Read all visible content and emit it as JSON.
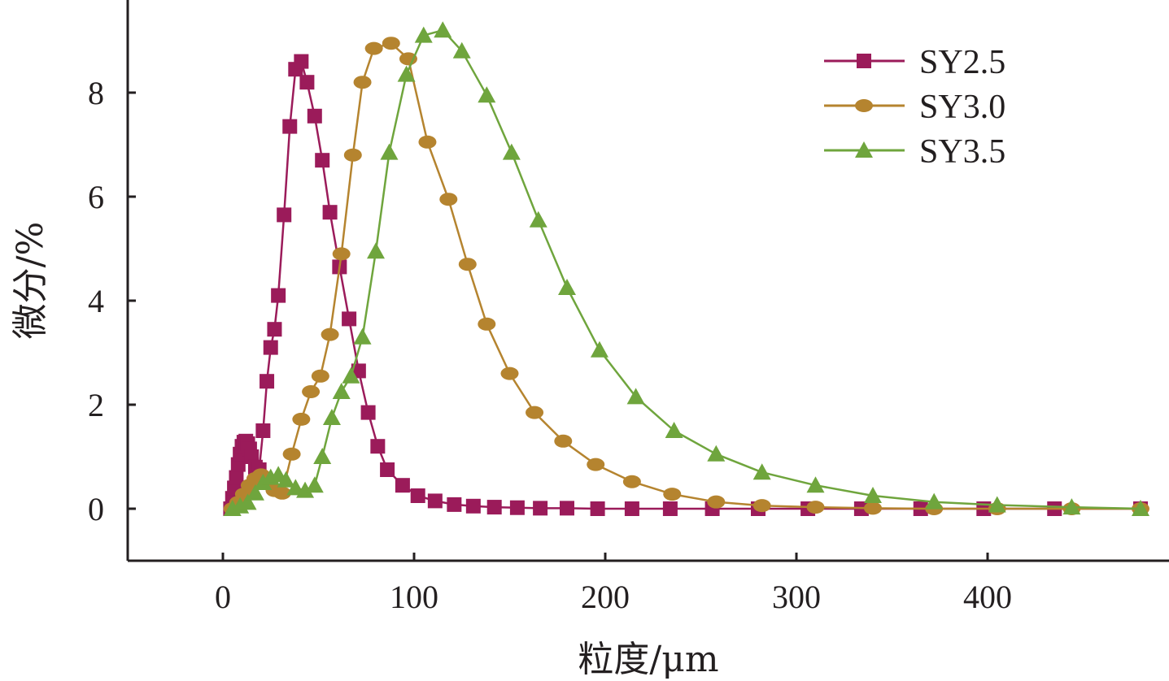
{
  "chart_data": {
    "type": "line",
    "title": "",
    "xlabel": "粒度/μm",
    "ylabel": "微分/%",
    "xlim": [
      -50,
      490
    ],
    "ylim": [
      -1,
      10
    ],
    "x_ticks": [
      0,
      100,
      200,
      300,
      400
    ],
    "y_ticks": [
      0,
      2,
      4,
      6,
      8
    ],
    "grid": false,
    "legend_position": "top-right",
    "series": [
      {
        "name": "SY2.5",
        "color": "#9b1b5a",
        "marker": "square",
        "x": [
          4,
          5,
          6,
          7,
          8,
          9,
          10,
          11,
          12,
          13,
          14,
          15,
          17,
          19,
          21,
          23,
          25,
          27,
          29,
          32,
          35,
          38,
          41,
          44,
          48,
          52,
          56,
          61,
          66,
          71,
          76,
          81,
          86,
          94,
          102,
          111,
          121,
          131,
          142,
          154,
          166,
          180,
          196,
          214,
          234,
          256,
          280,
          306,
          334,
          365,
          398,
          435,
          480
        ],
        "y": [
          0.0,
          0.2,
          0.4,
          0.6,
          0.85,
          1.05,
          1.2,
          1.28,
          1.3,
          1.25,
          1.15,
          1.0,
          0.8,
          0.75,
          1.5,
          2.45,
          3.1,
          3.45,
          4.1,
          5.65,
          7.35,
          8.45,
          8.6,
          8.2,
          7.55,
          6.7,
          5.7,
          4.65,
          3.65,
          2.65,
          1.85,
          1.2,
          0.75,
          0.45,
          0.25,
          0.15,
          0.08,
          0.05,
          0.03,
          0.02,
          0.01,
          0.01,
          0.0,
          0.0,
          0.0,
          0.0,
          0.0,
          0.0,
          0.0,
          0.0,
          0.0,
          0.0,
          0.0
        ]
      },
      {
        "name": "SY3.0",
        "color": "#b5842f",
        "marker": "circle",
        "x": [
          5,
          8,
          11,
          14,
          17,
          20,
          23,
          27,
          31,
          36,
          41,
          46,
          51,
          56,
          62,
          68,
          73,
          79,
          88,
          97,
          107,
          118,
          128,
          138,
          150,
          163,
          178,
          195,
          214,
          235,
          258,
          282,
          310,
          340,
          372,
          405,
          444,
          480
        ],
        "y": [
          0.0,
          0.12,
          0.28,
          0.45,
          0.58,
          0.65,
          0.55,
          0.35,
          0.3,
          1.05,
          1.72,
          2.25,
          2.55,
          3.35,
          4.9,
          6.8,
          8.2,
          8.85,
          8.95,
          8.65,
          7.05,
          5.95,
          4.7,
          3.55,
          2.6,
          1.85,
          1.3,
          0.85,
          0.52,
          0.28,
          0.13,
          0.06,
          0.03,
          0.01,
          0.0,
          0.0,
          0.0,
          0.0
        ]
      },
      {
        "name": "SY3.5",
        "color": "#6fa53d",
        "marker": "triangle",
        "x": [
          5,
          9,
          13,
          17,
          21,
          25,
          29,
          33,
          38,
          43,
          48,
          52,
          57,
          62,
          67,
          73,
          80,
          87,
          96,
          105,
          115,
          125,
          138,
          151,
          165,
          180,
          197,
          216,
          236,
          258,
          282,
          310,
          340,
          372,
          405,
          444,
          480
        ],
        "y": [
          0.0,
          0.05,
          0.12,
          0.3,
          0.5,
          0.6,
          0.65,
          0.55,
          0.4,
          0.35,
          0.45,
          1.0,
          1.75,
          2.25,
          2.55,
          3.3,
          4.95,
          6.85,
          8.35,
          9.1,
          9.2,
          8.8,
          7.95,
          6.85,
          5.55,
          4.25,
          3.05,
          2.15,
          1.5,
          1.05,
          0.7,
          0.45,
          0.25,
          0.13,
          0.07,
          0.03,
          0.0
        ]
      }
    ]
  }
}
